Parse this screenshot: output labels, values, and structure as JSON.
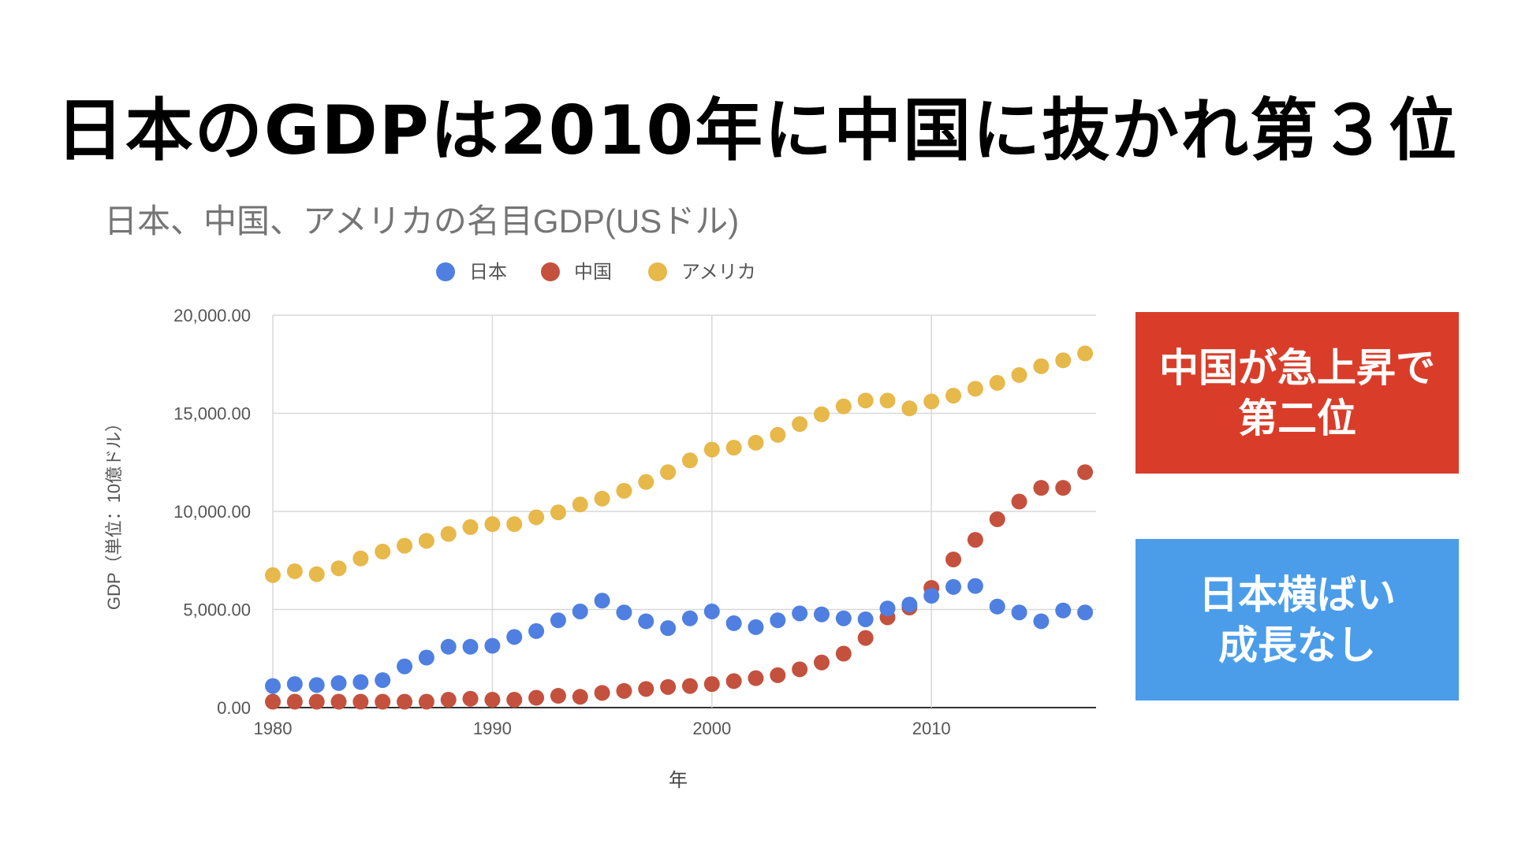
{
  "slide": {
    "title": "日本のGDPは2010年に中国に抜かれ第３位"
  },
  "callouts": {
    "china": {
      "line1": "中国が急上昇で",
      "line2": "第二位",
      "color": "#d93d2a"
    },
    "japan": {
      "line1": "日本横ばい",
      "line2": "成長なし",
      "color": "#4b9de9"
    }
  },
  "chart_data": {
    "type": "scatter",
    "title": "日本、中国、アメリカの名目GDP(USドル)",
    "xlabel": "年",
    "ylabel": "GDP（単位：10億ドル）",
    "xlim": [
      1980,
      2017.5
    ],
    "ylim": [
      0,
      20000
    ],
    "xticks": [
      "1980",
      "1990",
      "2000",
      "2010"
    ],
    "yticks": [
      "0.00",
      "5,000.00",
      "10,000.00",
      "15,000.00",
      "20,000.00"
    ],
    "grid": true,
    "legend_position": "top",
    "x": [
      1980,
      1981,
      1982,
      1983,
      1984,
      1985,
      1986,
      1987,
      1988,
      1989,
      1990,
      1991,
      1992,
      1993,
      1994,
      1995,
      1996,
      1997,
      1998,
      1999,
      2000,
      2001,
      2002,
      2003,
      2004,
      2005,
      2006,
      2007,
      2008,
      2009,
      2010,
      2011,
      2012,
      2013,
      2014,
      2015,
      2016,
      2017
    ],
    "series": [
      {
        "name": "日本",
        "color": "#4f7fe0",
        "values": [
          1100,
          1200,
          1150,
          1250,
          1300,
          1400,
          2100,
          2550,
          3100,
          3100,
          3150,
          3600,
          3900,
          4450,
          4900,
          5450,
          4850,
          4400,
          4050,
          4550,
          4900,
          4300,
          4100,
          4450,
          4800,
          4750,
          4550,
          4500,
          5050,
          5250,
          5700,
          6150,
          6200,
          5150,
          4850,
          4400,
          4950,
          4850
        ]
      },
      {
        "name": "中国",
        "color": "#c4513e",
        "values": [
          300,
          300,
          300,
          300,
          300,
          300,
          300,
          300,
          400,
          450,
          400,
          400,
          500,
          600,
          550,
          750,
          850,
          950,
          1050,
          1100,
          1200,
          1350,
          1500,
          1650,
          1950,
          2300,
          2750,
          3550,
          4600,
          5100,
          6100,
          7550,
          8550,
          9600,
          10500,
          11200,
          11200,
          12000
        ]
      },
      {
        "name": "アメリカ",
        "color": "#e7b84a",
        "values": [
          6750,
          6950,
          6800,
          7100,
          7600,
          7950,
          8250,
          8500,
          8850,
          9200,
          9350,
          9350,
          9700,
          9950,
          10350,
          10650,
          11050,
          11500,
          12000,
          12600,
          13150,
          13250,
          13500,
          13900,
          14450,
          14950,
          15350,
          15650,
          15650,
          15250,
          15600,
          15900,
          16250,
          16550,
          16950,
          17400,
          17700,
          18050
        ]
      }
    ]
  }
}
